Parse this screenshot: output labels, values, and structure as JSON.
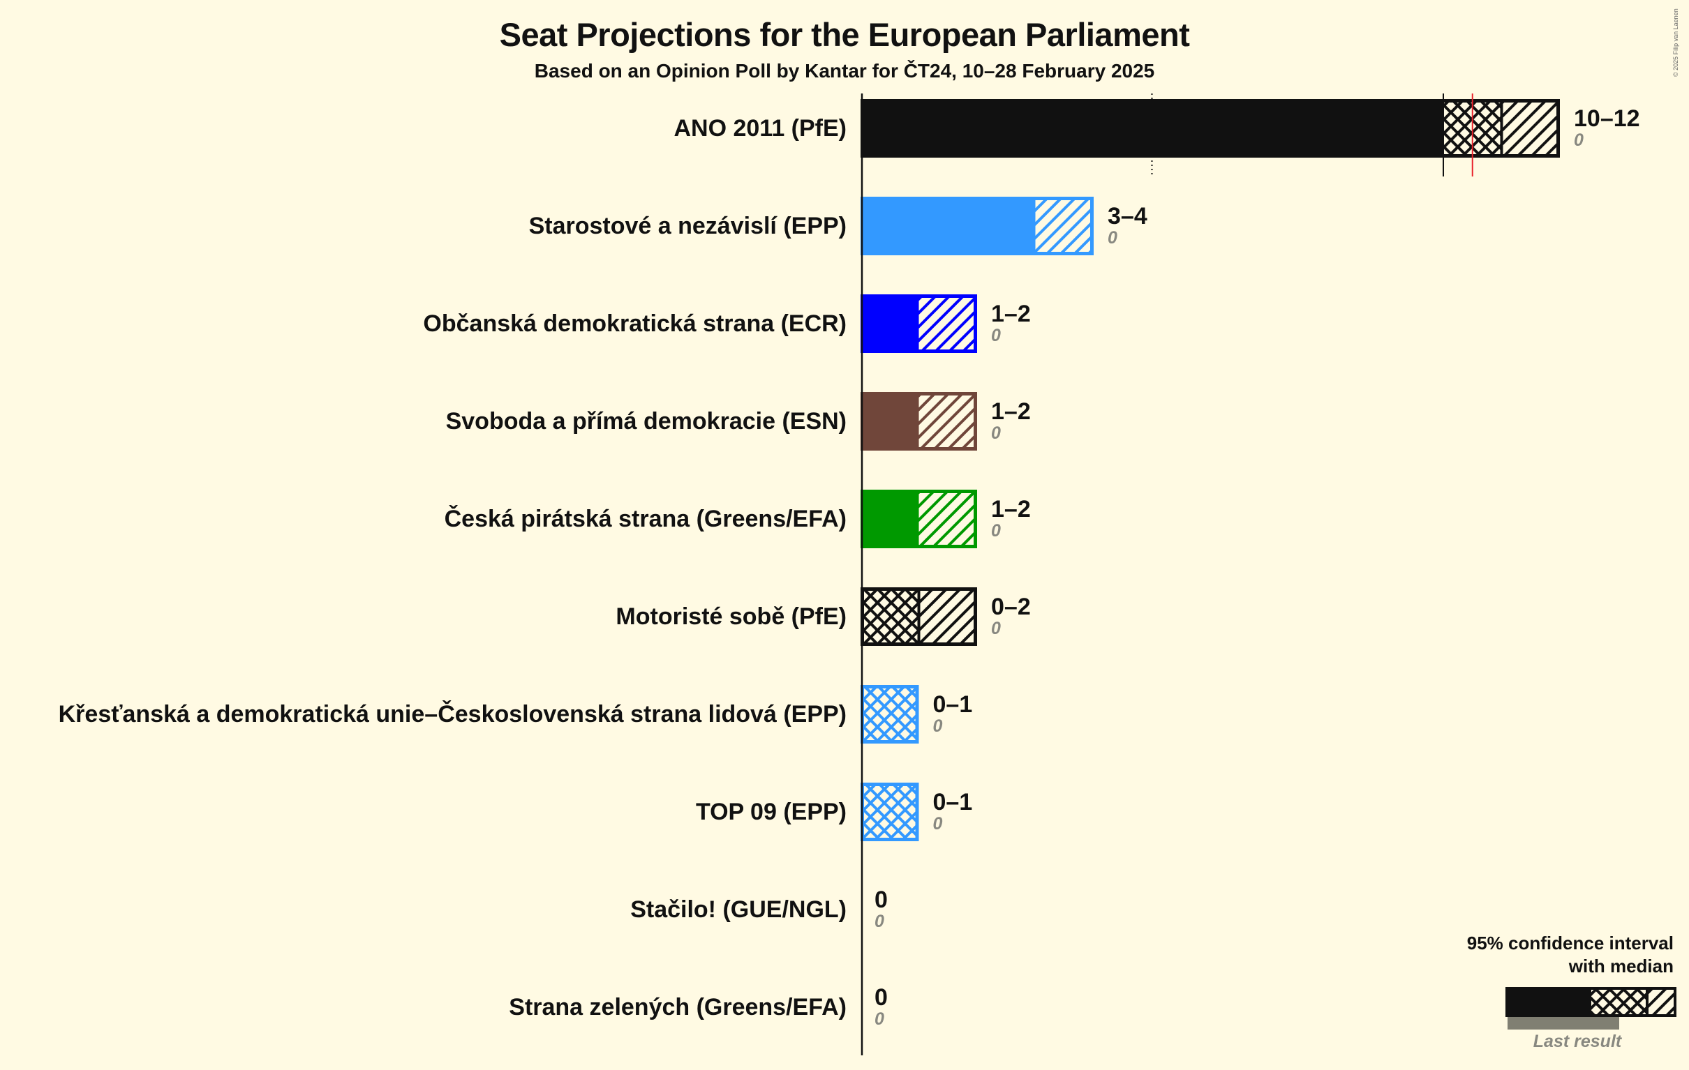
{
  "header": {
    "title": "Seat Projections for the European Parliament",
    "subtitle": "Based on an Opinion Poll by Kantar for ČT24, 10–28 February 2025",
    "copyright": "© 2025 Filip van Laenen"
  },
  "legend": {
    "title_line1": "95% confidence interval",
    "title_line2": "with median",
    "last_result": "Last result"
  },
  "colors": {
    "background": "#FFFAE3",
    "text": "#111111",
    "last_result_text": "#888880",
    "last_result_bar": "#807F72",
    "majority_line": "#E8202A"
  },
  "chart_data": {
    "type": "bar",
    "orientation": "horizontal",
    "title": "Seat Projections for the European Parliament",
    "subtitle": "Based on an Opinion Poll by Kantar for ČT24, 10–28 February 2025",
    "xlabel": "",
    "ylabel": "",
    "unit": "seats",
    "reference_lines": [
      {
        "type": "dotted",
        "x": 5
      },
      {
        "type": "solid",
        "x": 10,
        "row": 0
      },
      {
        "type": "majority",
        "x": 10.5,
        "row": 0,
        "color": "#E8202A"
      }
    ],
    "categories": [
      "ANO 2011 (PfE)",
      "Starostové a nezávislí (EPP)",
      "Občanská demokratická strana (ECR)",
      "Svoboda a přímá demokracie (ESN)",
      "Česká pirátská strana (Greens/EFA)",
      "Motoristé sobě (PfE)",
      "Křesťanská a demokratická unie–Československá strana lidová (EPP)",
      "TOP 09 (EPP)",
      "Stačilo! (GUE/NGL)",
      "Strana zelených (Greens/EFA)"
    ],
    "series": [
      {
        "name": "CI low",
        "values": [
          10,
          3,
          1,
          1,
          1,
          0,
          0,
          0,
          0,
          0
        ]
      },
      {
        "name": "Median",
        "values": [
          11,
          3,
          1,
          1,
          1,
          1,
          1,
          1,
          0,
          0
        ]
      },
      {
        "name": "CI high",
        "values": [
          12,
          4,
          2,
          2,
          2,
          2,
          1,
          1,
          0,
          0
        ]
      },
      {
        "name": "Last result",
        "values": [
          0,
          0,
          0,
          0,
          0,
          0,
          0,
          0,
          0,
          0
        ]
      }
    ],
    "parties": [
      {
        "name": "ANO 2011 (PfE)",
        "range": "10–12",
        "last": "0",
        "low": 10,
        "median": 11,
        "high": 12,
        "color": "#111111"
      },
      {
        "name": "Starostové a nezávislí (EPP)",
        "range": "3–4",
        "last": "0",
        "low": 3,
        "median": 3,
        "high": 4,
        "color": "#3399FF"
      },
      {
        "name": "Občanská demokratická strana (ECR)",
        "range": "1–2",
        "last": "0",
        "low": 1,
        "median": 1,
        "high": 2,
        "color": "#0000FF"
      },
      {
        "name": "Svoboda a přímá demokracie (ESN)",
        "range": "1–2",
        "last": "0",
        "low": 1,
        "median": 1,
        "high": 2,
        "color": "#70463A"
      },
      {
        "name": "Česká pirátská strana (Greens/EFA)",
        "range": "1–2",
        "last": "0",
        "low": 1,
        "median": 1,
        "high": 2,
        "color": "#009900"
      },
      {
        "name": "Motoristé sobě (PfE)",
        "range": "0–2",
        "last": "0",
        "low": 0,
        "median": 1,
        "high": 2,
        "color": "#111111"
      },
      {
        "name": "Křesťanská a demokratická unie–Československá strana lidová (EPP)",
        "range": "0–1",
        "last": "0",
        "low": 0,
        "median": 1,
        "high": 1,
        "color": "#3399FF"
      },
      {
        "name": "TOP 09 (EPP)",
        "range": "0–1",
        "last": "0",
        "low": 0,
        "median": 1,
        "high": 1,
        "color": "#3399FF"
      },
      {
        "name": "Stačilo! (GUE/NGL)",
        "range": "0",
        "last": "0",
        "low": 0,
        "median": 0,
        "high": 0,
        "color": "#BE1E2D"
      },
      {
        "name": "Strana zelených (Greens/EFA)",
        "range": "0",
        "last": "0",
        "low": 0,
        "median": 0,
        "high": 0,
        "color": "#009900"
      }
    ],
    "legend_position": "bottom-right",
    "grid": false
  }
}
